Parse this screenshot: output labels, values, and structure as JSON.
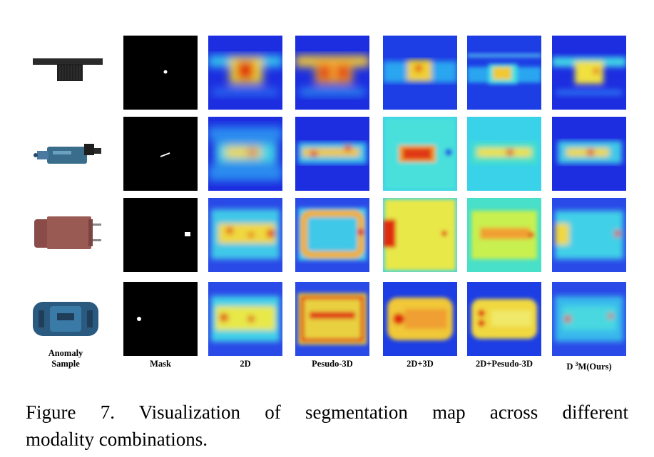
{
  "figure": {
    "columns": [
      {
        "id": "sample",
        "label_line1": "Anomaly",
        "label_line2": "Sample"
      },
      {
        "id": "mask",
        "label": "Mask"
      },
      {
        "id": "2d",
        "label": "2D"
      },
      {
        "id": "pseudo3d",
        "label": "Pesudo-3D"
      },
      {
        "id": "2d3d",
        "label": "2D+3D"
      },
      {
        "id": "2dpseudo3d",
        "label": "2D+Pesudo-3D"
      },
      {
        "id": "ours",
        "label_prefix": "D ",
        "label_sup": "3",
        "label_suffix": "M(Ours)"
      }
    ],
    "rows": [
      "row-1",
      "row-2",
      "row-3",
      "row-4"
    ],
    "colors": {
      "heatmap_low": "#1a24d8",
      "heatmap_mid": "#2fd2f2",
      "heatmap_high": "#f2e23a",
      "heatmap_peak": "#d81e08",
      "mask_bg": "#000000",
      "mask_fg": "#ffffff"
    }
  },
  "caption": {
    "line1": "Figure 7.   Visualization of segmentation map across different",
    "line2": "modality combinations."
  }
}
